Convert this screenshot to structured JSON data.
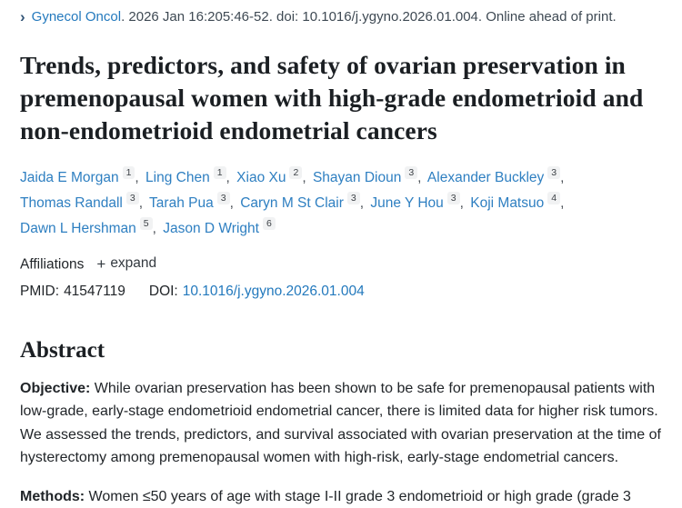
{
  "cite": {
    "chevron": "›",
    "journal": "Gynecol Oncol",
    "rest": ". 2026 Jan 16:205:46-52. doi: 10.1016/j.ygyno.2026.01.004. Online ahead of print."
  },
  "title": "Trends, predictors, and safety of ovarian preservation in premenopausal women with high-grade endometrioid and non-endometrioid endometrial cancers",
  "sep": ",",
  "authors": [
    {
      "name": "Jaida E Morgan",
      "sup": "1"
    },
    {
      "name": "Ling Chen",
      "sup": "1"
    },
    {
      "name": "Xiao Xu",
      "sup": "2"
    },
    {
      "name": "Shayan Dioun",
      "sup": "3"
    },
    {
      "name": "Alexander Buckley",
      "sup": "3"
    },
    {
      "name": "Thomas Randall",
      "sup": "3"
    },
    {
      "name": "Tarah Pua",
      "sup": "3"
    },
    {
      "name": "Caryn M St Clair",
      "sup": "3"
    },
    {
      "name": "June Y Hou",
      "sup": "3"
    },
    {
      "name": "Koji Matsuo",
      "sup": "4"
    },
    {
      "name": "Dawn L Hershman",
      "sup": "5"
    },
    {
      "name": "Jason D Wright",
      "sup": "6"
    }
  ],
  "affiliations": {
    "label": "Affiliations",
    "expand_icon": "+",
    "expand_label": "expand"
  },
  "ids": {
    "pmid_label": "PMID:",
    "pmid": "41547119",
    "doi_label": "DOI:",
    "doi": "10.1016/j.ygyno.2026.01.004"
  },
  "abstract": {
    "heading": "Abstract",
    "sections": [
      {
        "label": "Objective:",
        "text": " While ovarian preservation has been shown to be safe for premenopausal patients with low-grade, early-stage endometrioid endometrial cancer, there is limited data for higher risk tumors. We assessed the trends, predictors, and survival associated with ovarian preservation at the time of hysterectomy among premenopausal women with high-risk, early-stage endometrial cancers."
      },
      {
        "label": "Methods:",
        "text": " Women ≤50 years of age with stage I-II grade 3 endometrioid or high grade (grade 3"
      }
    ]
  },
  "colors": {
    "link_blue": "#2e7fc1",
    "text": "#212529",
    "sup_bg": "#f1f2f3"
  }
}
